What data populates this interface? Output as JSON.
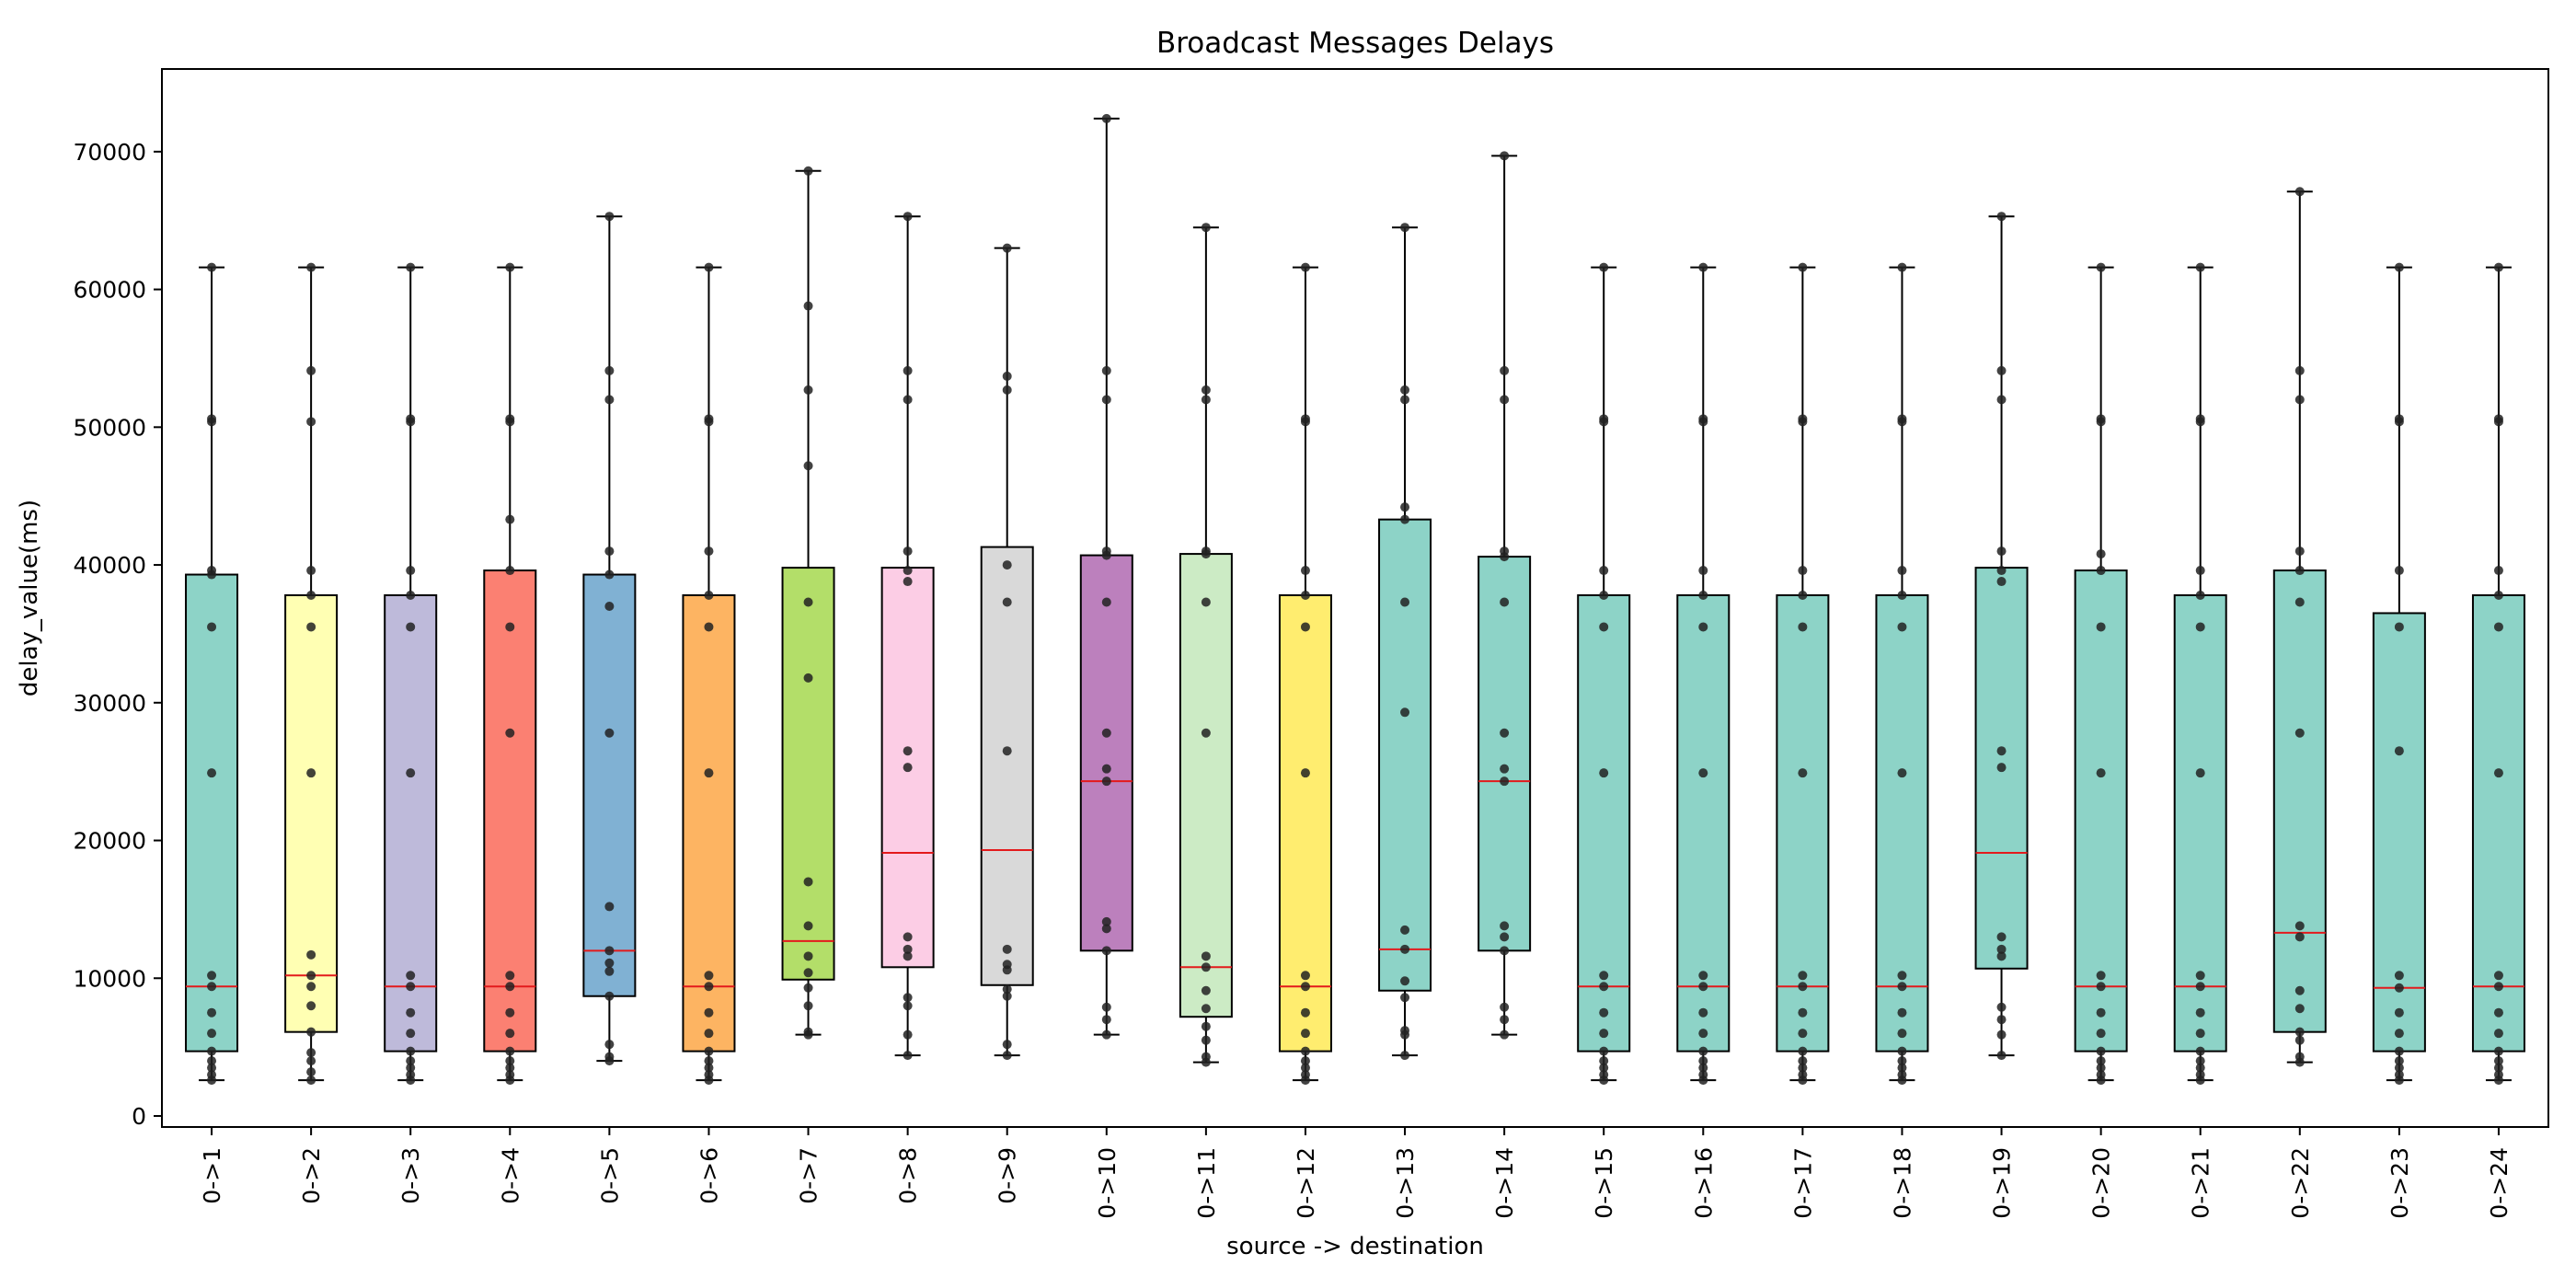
{
  "chart_data": {
    "type": "box",
    "title": "Broadcast Messages Delays",
    "xlabel": "source -> destination",
    "ylabel": "delay_value(ms)",
    "ylim": [
      -800,
      76000
    ],
    "yticks": [
      0,
      10000,
      20000,
      30000,
      40000,
      50000,
      60000,
      70000
    ],
    "grid": false,
    "legend": "none",
    "median_color": "#e31a1c",
    "point_color": "#222222",
    "categories": [
      "0->1",
      "0->2",
      "0->3",
      "0->4",
      "0->5",
      "0->6",
      "0->7",
      "0->8",
      "0->9",
      "0->10",
      "0->11",
      "0->12",
      "0->13",
      "0->14",
      "0->15",
      "0->16",
      "0->17",
      "0->18",
      "0->19",
      "0->20",
      "0->21",
      "0->22",
      "0->23",
      "0->24"
    ],
    "boxes": [
      {
        "category": "0->1",
        "color": "#8dd3c7",
        "min": 2600,
        "q1": 4700,
        "median": 9400,
        "q3": 39300,
        "max": 61600,
        "points": [
          2600,
          3000,
          3500,
          4000,
          4700,
          6000,
          7500,
          9400,
          10200,
          24900,
          35500,
          39300,
          39600,
          50400,
          50600,
          61600
        ]
      },
      {
        "category": "0->2",
        "color": "#ffffb3",
        "min": 2600,
        "q1": 6100,
        "median": 10200,
        "q3": 37800,
        "max": 61600,
        "points": [
          2600,
          3200,
          4000,
          4600,
          6100,
          8000,
          9400,
          10200,
          11700,
          24900,
          35500,
          37800,
          39600,
          50400,
          54100,
          61600
        ]
      },
      {
        "category": "0->3",
        "color": "#bebada",
        "min": 2600,
        "q1": 4700,
        "median": 9400,
        "q3": 37800,
        "max": 61600,
        "points": [
          2600,
          3000,
          3500,
          4000,
          4700,
          6000,
          7500,
          9400,
          10200,
          24900,
          35500,
          37800,
          39600,
          50400,
          50600,
          61600
        ]
      },
      {
        "category": "0->4",
        "color": "#fb8072",
        "min": 2600,
        "q1": 4700,
        "median": 9400,
        "q3": 39600,
        "max": 61600,
        "points": [
          2600,
          3000,
          3500,
          4000,
          4700,
          6000,
          7500,
          9400,
          10200,
          27800,
          35500,
          39600,
          43300,
          50400,
          50600,
          61600
        ]
      },
      {
        "category": "0->5",
        "color": "#80b1d3",
        "min": 4000,
        "q1": 8700,
        "median": 12000,
        "q3": 39300,
        "max": 65300,
        "points": [
          4000,
          4300,
          5200,
          8700,
          10500,
          11100,
          12000,
          15200,
          27800,
          37000,
          39300,
          41000,
          52000,
          54100,
          65300
        ]
      },
      {
        "category": "0->6",
        "color": "#fdb462",
        "min": 2600,
        "q1": 4700,
        "median": 9400,
        "q3": 37800,
        "max": 61600,
        "points": [
          2600,
          3000,
          3500,
          4000,
          4700,
          6000,
          7500,
          9400,
          10200,
          24900,
          35500,
          37800,
          41000,
          50400,
          50600,
          61600
        ]
      },
      {
        "category": "0->7",
        "color": "#b3de69",
        "min": 5900,
        "q1": 9900,
        "median": 12700,
        "q3": 39800,
        "max": 68600,
        "points": [
          5900,
          6100,
          8000,
          9300,
          10400,
          11600,
          13800,
          17000,
          31800,
          37300,
          47200,
          52700,
          58800,
          68600
        ]
      },
      {
        "category": "0->8",
        "color": "#fccde5",
        "min": 4400,
        "q1": 10800,
        "median": 19100,
        "q3": 39800,
        "max": 65300,
        "points": [
          4400,
          5900,
          8000,
          8600,
          11600,
          12100,
          13000,
          25300,
          26500,
          38800,
          39600,
          41000,
          52000,
          54100,
          65300
        ]
      },
      {
        "category": "0->9",
        "color": "#d9d9d9",
        "min": 4400,
        "q1": 9500,
        "median": 19300,
        "q3": 41300,
        "max": 63000,
        "points": [
          4400,
          5200,
          8700,
          9200,
          10600,
          11000,
          12100,
          26500,
          37300,
          40000,
          52700,
          53700,
          63000
        ]
      },
      {
        "category": "0->10",
        "color": "#bc80bd",
        "min": 5900,
        "q1": 12000,
        "median": 24300,
        "q3": 40700,
        "max": 72400,
        "points": [
          5900,
          7000,
          7900,
          12000,
          13600,
          14100,
          24300,
          25200,
          27800,
          37300,
          40700,
          41000,
          52000,
          54100,
          72400
        ]
      },
      {
        "category": "0->11",
        "color": "#ccebc5",
        "min": 3900,
        "q1": 7200,
        "median": 10800,
        "q3": 40800,
        "max": 64500,
        "points": [
          3900,
          4300,
          5500,
          6500,
          7800,
          9100,
          10800,
          11600,
          27800,
          37300,
          40800,
          41000,
          52000,
          52700,
          64500
        ]
      },
      {
        "category": "0->12",
        "color": "#ffed6f",
        "min": 2600,
        "q1": 4700,
        "median": 9400,
        "q3": 37800,
        "max": 61600,
        "points": [
          2600,
          3000,
          3500,
          4000,
          4700,
          6000,
          7500,
          9400,
          10200,
          24900,
          35500,
          37800,
          39600,
          50400,
          50600,
          61600
        ]
      },
      {
        "category": "0->13",
        "color": "#8dd3c7",
        "min": 4400,
        "q1": 9100,
        "median": 12100,
        "q3": 43300,
        "max": 64500,
        "points": [
          4400,
          5900,
          6200,
          8600,
          9800,
          12100,
          13500,
          29300,
          37300,
          43300,
          44200,
          52000,
          52700,
          64500
        ]
      },
      {
        "category": "0->14",
        "color": "#8dd3c7",
        "min": 5900,
        "q1": 12000,
        "median": 24300,
        "q3": 40600,
        "max": 69700,
        "points": [
          5900,
          7000,
          7900,
          12000,
          13000,
          13800,
          24300,
          25200,
          27800,
          37300,
          40600,
          41000,
          52000,
          54100,
          69700
        ]
      },
      {
        "category": "0->15",
        "color": "#8dd3c7",
        "min": 2600,
        "q1": 4700,
        "median": 9400,
        "q3": 37800,
        "max": 61600,
        "points": [
          2600,
          3000,
          3500,
          4000,
          4700,
          6000,
          7500,
          9400,
          10200,
          24900,
          35500,
          37800,
          39600,
          50400,
          50600,
          61600
        ]
      },
      {
        "category": "0->16",
        "color": "#8dd3c7",
        "min": 2600,
        "q1": 4700,
        "median": 9400,
        "q3": 37800,
        "max": 61600,
        "points": [
          2600,
          3000,
          3500,
          4000,
          4700,
          6000,
          7500,
          9400,
          10200,
          24900,
          35500,
          37800,
          39600,
          50400,
          50600,
          61600
        ]
      },
      {
        "category": "0->17",
        "color": "#8dd3c7",
        "min": 2600,
        "q1": 4700,
        "median": 9400,
        "q3": 37800,
        "max": 61600,
        "points": [
          2600,
          3000,
          3500,
          4000,
          4700,
          6000,
          7500,
          9400,
          10200,
          24900,
          35500,
          37800,
          39600,
          50400,
          50600,
          61600
        ]
      },
      {
        "category": "0->18",
        "color": "#8dd3c7",
        "min": 2600,
        "q1": 4700,
        "median": 9400,
        "q3": 37800,
        "max": 61600,
        "points": [
          2600,
          3000,
          3500,
          4000,
          4700,
          6000,
          7500,
          9400,
          10200,
          24900,
          35500,
          37800,
          39600,
          50400,
          50600,
          61600
        ]
      },
      {
        "category": "0->19",
        "color": "#8dd3c7",
        "min": 4400,
        "q1": 10700,
        "median": 19100,
        "q3": 39800,
        "max": 65300,
        "points": [
          4400,
          5900,
          7000,
          7900,
          11600,
          12100,
          13000,
          25300,
          26500,
          38800,
          39600,
          41000,
          52000,
          54100,
          65300
        ]
      },
      {
        "category": "0->20",
        "color": "#8dd3c7",
        "min": 2600,
        "q1": 4700,
        "median": 9400,
        "q3": 39600,
        "max": 61600,
        "points": [
          2600,
          3000,
          3500,
          4000,
          4700,
          6000,
          7500,
          9400,
          10200,
          24900,
          35500,
          39600,
          40800,
          50400,
          50600,
          61600
        ]
      },
      {
        "category": "0->21",
        "color": "#8dd3c7",
        "min": 2600,
        "q1": 4700,
        "median": 9400,
        "q3": 37800,
        "max": 61600,
        "points": [
          2600,
          3000,
          3500,
          4000,
          4700,
          6000,
          7500,
          9400,
          10200,
          24900,
          35500,
          37800,
          39600,
          50400,
          50600,
          61600
        ]
      },
      {
        "category": "0->22",
        "color": "#8dd3c7",
        "min": 3900,
        "q1": 6100,
        "median": 13300,
        "q3": 39600,
        "max": 67100,
        "points": [
          3900,
          4300,
          5500,
          6100,
          7800,
          9100,
          13000,
          13800,
          27800,
          37300,
          39600,
          41000,
          52000,
          54100,
          67100
        ]
      },
      {
        "category": "0->23",
        "color": "#8dd3c7",
        "min": 2600,
        "q1": 4700,
        "median": 9300,
        "q3": 36500,
        "max": 61600,
        "points": [
          2600,
          3000,
          3500,
          4000,
          4700,
          6000,
          7500,
          9300,
          10200,
          26500,
          35500,
          39600,
          50400,
          50600,
          61600
        ]
      },
      {
        "category": "0->24",
        "color": "#8dd3c7",
        "min": 2600,
        "q1": 4700,
        "median": 9400,
        "q3": 37800,
        "max": 61600,
        "points": [
          2600,
          3000,
          3500,
          4000,
          4700,
          6000,
          7500,
          9400,
          10200,
          24900,
          35500,
          37800,
          39600,
          50400,
          50600,
          61600
        ]
      }
    ]
  }
}
